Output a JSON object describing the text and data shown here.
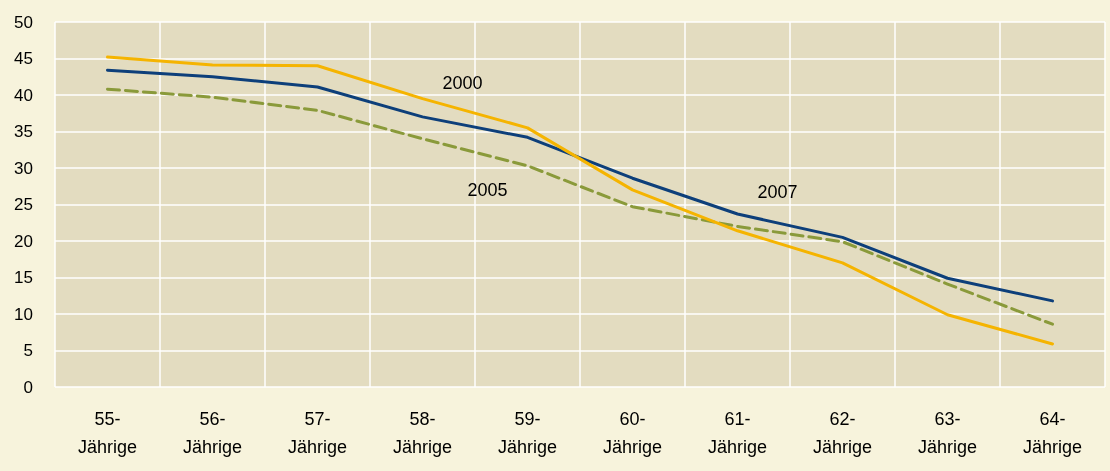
{
  "chart_data": {
    "type": "line",
    "categories": [
      "55-Jährige",
      "56-Jährige",
      "57-Jährige",
      "58-Jährige",
      "59-Jährige",
      "60-Jährige",
      "61-Jährige",
      "62-Jährige",
      "63-Jährige",
      "64-Jährige"
    ],
    "series": [
      {
        "name": "2000",
        "color": "#f5b400",
        "values": [
          45.2,
          44.1,
          44,
          39.5,
          35.5,
          27,
          21.4,
          17,
          9.9,
          5.9
        ]
      },
      {
        "name": "2005",
        "color": "#8a9a3a",
        "line_style": "dashed",
        "values": [
          40.8,
          39.7,
          37.9,
          34,
          30.3,
          24.7,
          22,
          19.9,
          14.1,
          8.6
        ]
      },
      {
        "name": "2007",
        "color": "#0d3f7a",
        "values": [
          43.4,
          42.5,
          41.1,
          37,
          34.2,
          28.6,
          23.7,
          20.5,
          14.9,
          11.8
        ]
      }
    ],
    "ylim": [
      0,
      50
    ],
    "yticks": [
      0,
      5,
      10,
      15,
      20,
      25,
      30,
      35,
      40,
      45,
      50
    ],
    "grid": true,
    "legend": false,
    "marker": "none"
  }
}
